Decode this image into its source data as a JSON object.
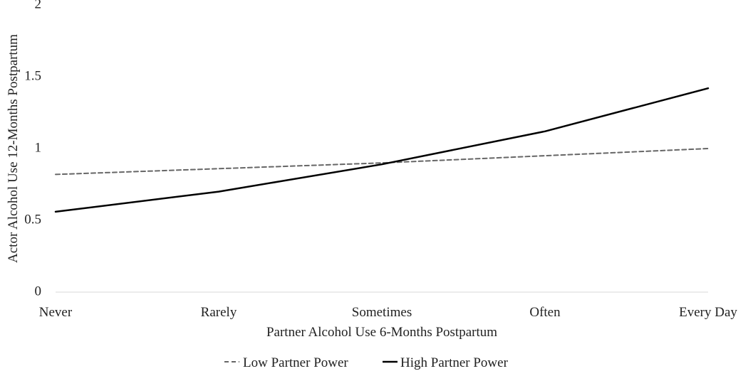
{
  "chart_data": {
    "type": "line",
    "title": "",
    "xlabel": "Partner Alcohol Use 6-Months Postpartum",
    "ylabel": "Actor Alcohol Use 12-Months Postpartum",
    "categories": [
      "Never",
      "Rarely",
      "Sometimes",
      "Often",
      "Every Day"
    ],
    "ylim": [
      0,
      2
    ],
    "yticks": [
      "0",
      "0.5",
      "1",
      "1.5",
      "2"
    ],
    "grid": false,
    "legend_position": "bottom",
    "series": [
      {
        "name": "Low Partner Power",
        "values": [
          0.82,
          0.86,
          0.9,
          0.95,
          1.0
        ],
        "color": "#666666",
        "style": "dashed"
      },
      {
        "name": "High Partner Power",
        "values": [
          0.56,
          0.7,
          0.89,
          1.12,
          1.42
        ],
        "color": "#000000",
        "style": "solid"
      }
    ]
  }
}
